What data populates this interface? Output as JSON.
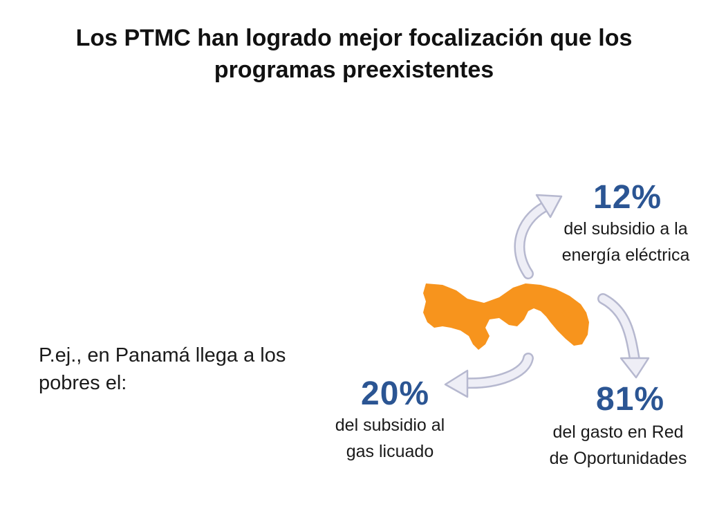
{
  "slide": {
    "title": "Los PTMC han logrado mejor focalización que los programas preexistentes",
    "intro": "P.ej., en Panamá llega a los pobres el:"
  },
  "colors": {
    "accent": "#2b5593",
    "map": "#f7941d",
    "arrow_fill": "#eeeef6",
    "arrow_stroke": "#b6b8cf"
  },
  "stats": {
    "electricity": {
      "value": "12%",
      "description": "del subsidio a la energía eléctrica"
    },
    "red_oportunidades": {
      "value": "81%",
      "description": "del gasto en Red de Oportunidades"
    },
    "gas": {
      "value": "20%",
      "description": "del subsidio al gas licuado"
    }
  }
}
